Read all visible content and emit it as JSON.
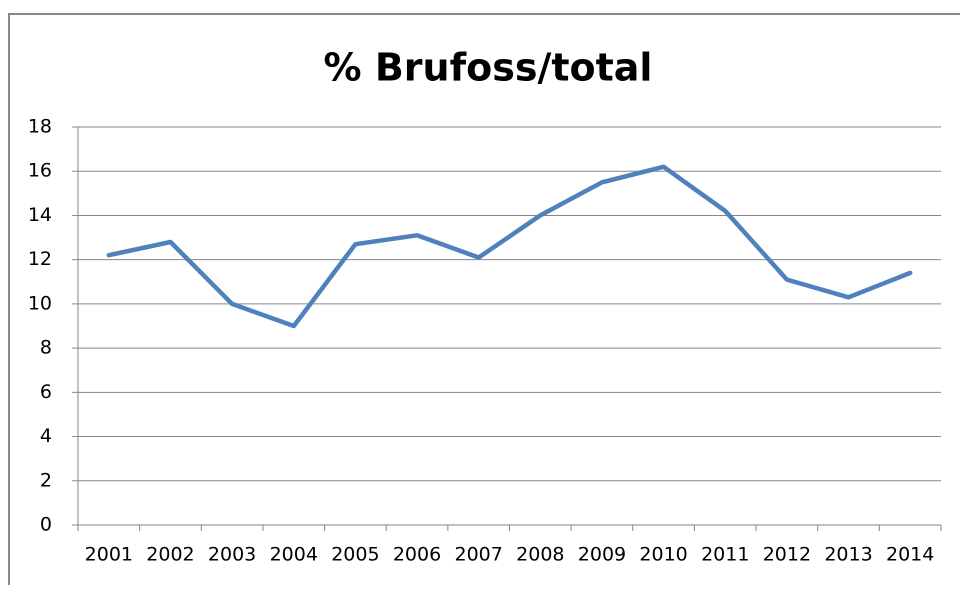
{
  "chart_data": {
    "type": "line",
    "title": "% Brufoss/total",
    "categories": [
      "2001",
      "2002",
      "2003",
      "2004",
      "2005",
      "2006",
      "2007",
      "2008",
      "2009",
      "2010",
      "2011",
      "2012",
      "2013",
      "2014"
    ],
    "series": [
      {
        "name": "% Brufoss/total",
        "color": "#4f81bd",
        "values": [
          12.2,
          12.8,
          10.0,
          9.0,
          12.7,
          13.1,
          12.1,
          14.0,
          15.5,
          16.2,
          14.2,
          11.1,
          10.3,
          11.4
        ]
      }
    ],
    "ylim": [
      0,
      18
    ],
    "yticks": [
      0,
      2,
      4,
      6,
      8,
      10,
      12,
      14,
      16,
      18
    ],
    "grid": true,
    "legend": false
  }
}
